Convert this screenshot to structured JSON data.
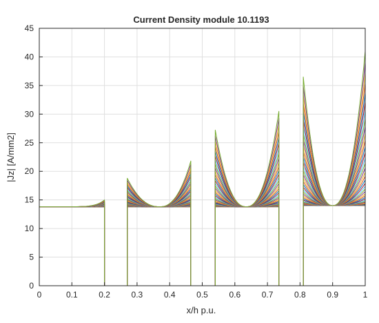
{
  "chart_data": {
    "type": "line",
    "title": "Current Density module 10.1193",
    "xlabel": "x/h p.u.",
    "ylabel": "|Jz| [A/mm2]",
    "xlim": [
      0,
      1
    ],
    "ylim": [
      0,
      45
    ],
    "xticks": [
      "0",
      "0.1",
      "0.2",
      "0.3",
      "0.4",
      "0.5",
      "0.6",
      "0.7",
      "0.8",
      "0.9",
      "1"
    ],
    "yticks": [
      "0",
      "5",
      "10",
      "15",
      "20",
      "25",
      "30",
      "35",
      "40",
      "45"
    ],
    "grid": true,
    "legend": "none",
    "conductors": [
      {
        "x": [
          0.0,
          0.2
        ],
        "base": 13.8,
        "end_peak": 15.0
      },
      {
        "x": [
          0.27,
          0.465
        ],
        "min_x": 0.37,
        "min": 13.8,
        "start_peak": 18.8,
        "end_peak": 21.8
      },
      {
        "x": [
          0.54,
          0.735
        ],
        "min_x": 0.635,
        "min": 13.8,
        "start_peak": 27.2,
        "end_peak": 30.5
      },
      {
        "x": [
          0.81,
          1.0
        ],
        "min_x": 0.9,
        "min": 14.0,
        "start_peak": 36.5,
        "end_peak": 41.0
      }
    ],
    "gap_value": 0,
    "num_series": 40,
    "series_colors": [
      "#0072bd",
      "#d95319",
      "#edb120",
      "#7e2f8e",
      "#77ac30",
      "#4dbeee",
      "#a2142f"
    ]
  }
}
